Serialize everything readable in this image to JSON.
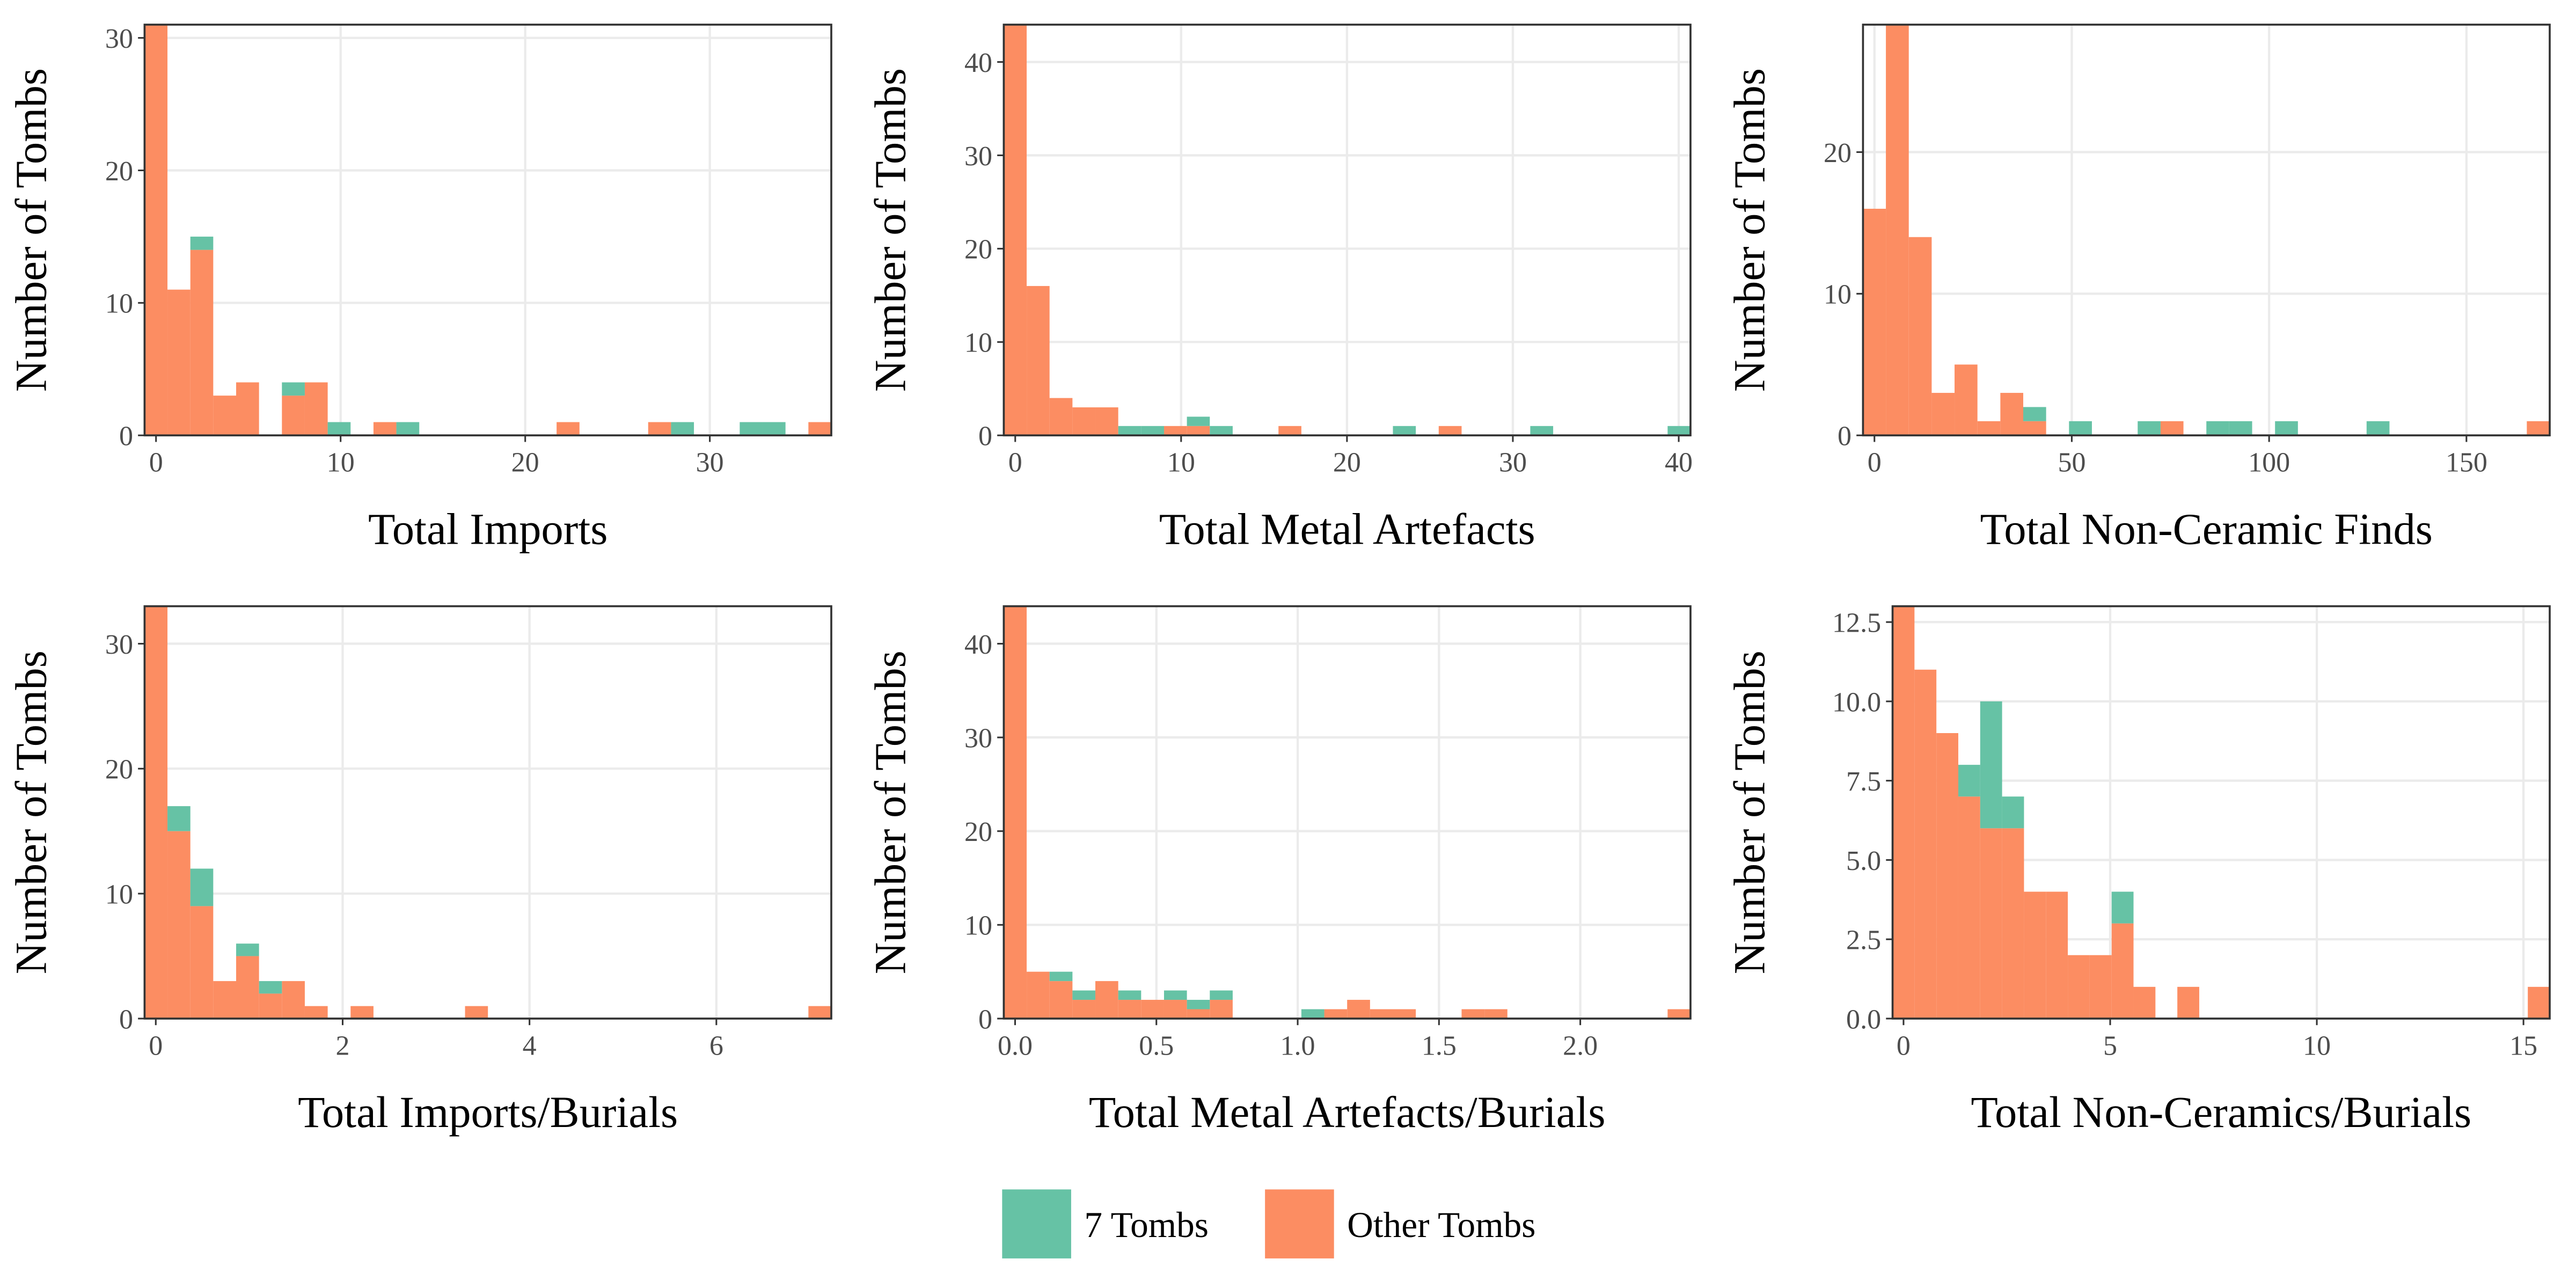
{
  "chart_data": [
    {
      "type": "histogram",
      "x_label": "Total Imports",
      "y_label": "Number of Tombs",
      "bins": [
        -0.62,
        0.62,
        1.86,
        3.1,
        4.34,
        5.58,
        6.82,
        8.06,
        9.3,
        10.54,
        11.78,
        13.02,
        14.26,
        15.5,
        16.74,
        17.98,
        19.22,
        20.46,
        21.7,
        22.94,
        24.18,
        25.42,
        26.66,
        27.9,
        29.14,
        30.38,
        31.62,
        32.86,
        34.1,
        35.34,
        36.58
      ],
      "series": [
        {
          "values": [
            0,
            0,
            1,
            0,
            0,
            0,
            1,
            0,
            1,
            0,
            0,
            1,
            0,
            0,
            0,
            0,
            0,
            0,
            0,
            0,
            0,
            0,
            0,
            1,
            0,
            0,
            1,
            1,
            0,
            0
          ]
        },
        {
          "values": [
            31,
            11,
            14,
            3,
            4,
            0,
            3,
            4,
            0,
            0,
            1,
            0,
            0,
            0,
            0,
            0,
            0,
            0,
            1,
            0,
            0,
            0,
            1,
            0,
            0,
            0,
            0,
            0,
            0,
            1
          ]
        }
      ],
      "xlim": [
        -0.62,
        36.58
      ],
      "ylim": [
        0,
        31
      ],
      "xticks": [
        0,
        10,
        20,
        30
      ],
      "yticks": [
        0,
        10,
        20,
        30
      ]
    },
    {
      "type": "histogram",
      "x_label": "Total Metal Artefacts",
      "y_label": "Number of Tombs",
      "bins": [
        -0.69,
        0.69,
        2.07,
        3.45,
        4.83,
        6.21,
        7.59,
        8.97,
        10.35,
        11.73,
        13.11,
        14.49,
        15.87,
        17.25,
        18.63,
        20.01,
        21.39,
        22.77,
        24.15,
        25.53,
        26.91,
        28.29,
        29.67,
        31.05,
        32.43,
        33.81,
        35.19,
        36.57,
        37.95,
        39.33,
        40.71
      ],
      "series": [
        {
          "values": [
            0,
            0,
            0,
            0,
            0,
            1,
            1,
            0,
            1,
            1,
            0,
            0,
            0,
            0,
            0,
            0,
            0,
            1,
            0,
            0,
            0,
            0,
            0,
            1,
            0,
            0,
            0,
            0,
            0,
            1
          ]
        },
        {
          "values": [
            44,
            16,
            4,
            3,
            3,
            0,
            0,
            1,
            1,
            0,
            0,
            0,
            1,
            0,
            0,
            0,
            0,
            0,
            0,
            1,
            0,
            0,
            0,
            0,
            0,
            0,
            0,
            0,
            0,
            0
          ]
        }
      ],
      "xlim": [
        -0.69,
        40.71
      ],
      "ylim": [
        0,
        44
      ],
      "xticks": [
        0,
        10,
        20,
        30,
        40
      ],
      "yticks": [
        0,
        10,
        20,
        30,
        40
      ]
    },
    {
      "type": "histogram",
      "x_label": "Total Non-Ceramic Finds",
      "y_label": "Number of Tombs",
      "bins": [
        -2.9,
        2.9,
        8.7,
        14.5,
        20.3,
        26.1,
        31.9,
        37.7,
        43.5,
        49.3,
        55.1,
        60.9,
        66.7,
        72.5,
        78.3,
        84.1,
        89.9,
        95.7,
        101.5,
        107.3,
        113.1,
        118.9,
        124.7,
        130.5,
        136.3,
        142.1,
        147.9,
        153.7,
        159.5,
        165.3,
        171.1
      ],
      "series": [
        {
          "values": [
            0,
            0,
            0,
            0,
            0,
            0,
            0,
            1,
            0,
            1,
            0,
            0,
            1,
            0,
            0,
            1,
            1,
            0,
            1,
            0,
            0,
            0,
            1,
            0,
            0,
            0,
            0,
            0,
            0,
            0
          ]
        },
        {
          "values": [
            16,
            29,
            14,
            3,
            5,
            1,
            3,
            1,
            0,
            0,
            0,
            0,
            0,
            1,
            0,
            0,
            0,
            0,
            0,
            0,
            0,
            0,
            0,
            0,
            0,
            0,
            0,
            0,
            0,
            1
          ]
        }
      ],
      "xlim": [
        -2.9,
        171.1
      ],
      "ylim": [
        0,
        29
      ],
      "xticks": [
        0,
        50,
        100,
        150
      ],
      "yticks": [
        0,
        10,
        20
      ]
    },
    {
      "type": "histogram",
      "x_label": "Total Imports/Burials",
      "y_label": "Number of Tombs",
      "bins": [
        -0.12,
        0.125,
        0.37,
        0.615,
        0.86,
        1.105,
        1.35,
        1.595,
        1.84,
        2.085,
        2.33,
        2.575,
        2.82,
        3.065,
        3.31,
        3.555,
        3.8,
        4.045,
        4.29,
        4.535,
        4.78,
        5.025,
        5.27,
        5.515,
        5.76,
        6.005,
        6.25,
        6.495,
        6.74,
        6.985,
        7.23
      ],
      "series": [
        {
          "values": [
            0,
            2,
            3,
            0,
            1,
            1,
            0,
            0,
            0,
            0,
            0,
            0,
            0,
            0,
            0,
            0,
            0,
            0,
            0,
            0,
            0,
            0,
            0,
            0,
            0,
            0,
            0,
            0,
            0,
            0
          ]
        },
        {
          "values": [
            33,
            15,
            9,
            3,
            5,
            2,
            3,
            1,
            0,
            1,
            0,
            0,
            0,
            0,
            1,
            0,
            0,
            0,
            0,
            0,
            0,
            0,
            0,
            0,
            0,
            0,
            0,
            0,
            0,
            1
          ]
        }
      ],
      "xlim": [
        -0.12,
        7.23
      ],
      "ylim": [
        0,
        33
      ],
      "xticks": [
        0,
        2,
        4,
        6
      ],
      "yticks": [
        0,
        10,
        20,
        30
      ]
    },
    {
      "type": "histogram",
      "x_label": "Total Metal Artefacts/Burials",
      "y_label": "Number of Tombs",
      "bins": [
        -0.04,
        0.041,
        0.122,
        0.203,
        0.284,
        0.365,
        0.446,
        0.527,
        0.608,
        0.689,
        0.77,
        0.851,
        0.932,
        1.013,
        1.094,
        1.175,
        1.256,
        1.337,
        1.418,
        1.499,
        1.58,
        1.661,
        1.742,
        1.823,
        1.904,
        1.985,
        2.066,
        2.147,
        2.228,
        2.309,
        2.39
      ],
      "series": [
        {
          "values": [
            0,
            0,
            1,
            1,
            0,
            1,
            0,
            1,
            1,
            1,
            0,
            0,
            0,
            1,
            0,
            0,
            0,
            0,
            0,
            0,
            0,
            0,
            0,
            0,
            0,
            0,
            0,
            0,
            0,
            0
          ]
        },
        {
          "values": [
            44,
            5,
            4,
            2,
            4,
            2,
            2,
            2,
            1,
            2,
            0,
            0,
            0,
            0,
            1,
            2,
            1,
            1,
            0,
            0,
            1,
            1,
            0,
            0,
            0,
            0,
            0,
            0,
            0,
            1
          ]
        }
      ],
      "xlim": [
        -0.04,
        2.39
      ],
      "ylim": [
        0,
        44
      ],
      "xticks": [
        {
          "value": 0,
          "label": "0.0"
        },
        0.5,
        {
          "value": 1,
          "label": "1.0"
        },
        1.5,
        {
          "value": 2,
          "label": "2.0"
        }
      ],
      "yticks": [
        0,
        10,
        20,
        30,
        40
      ]
    },
    {
      "type": "histogram",
      "x_label": "Total Non-Ceramics/Burials",
      "y_label": "Number of Tombs",
      "bins": [
        -0.265,
        0.265,
        0.795,
        1.325,
        1.855,
        2.385,
        2.915,
        3.445,
        3.975,
        4.505,
        5.035,
        5.565,
        6.095,
        6.625,
        7.155,
        7.685,
        8.215,
        8.745,
        9.275,
        9.805,
        10.335,
        10.865,
        11.395,
        11.925,
        12.455,
        12.985,
        13.515,
        14.045,
        14.575,
        15.105,
        15.635
      ],
      "series": [
        {
          "values": [
            0,
            0,
            0,
            1,
            4,
            1,
            0,
            0,
            0,
            0,
            1,
            0,
            0,
            0,
            0,
            0,
            0,
            0,
            0,
            0,
            0,
            0,
            0,
            0,
            0,
            0,
            0,
            0,
            0,
            0
          ]
        },
        {
          "values": [
            13,
            11,
            9,
            7,
            6,
            6,
            4,
            4,
            2,
            2,
            3,
            1,
            0,
            1,
            0,
            0,
            0,
            0,
            0,
            0,
            0,
            0,
            0,
            0,
            0,
            0,
            0,
            0,
            0,
            1
          ]
        }
      ],
      "xlim": [
        -0.265,
        15.635
      ],
      "ylim": [
        0,
        13
      ],
      "xticks": [
        0,
        5,
        10,
        15
      ],
      "yticks": [
        {
          "value": 0,
          "label": "0.0"
        },
        2.5,
        {
          "value": 5,
          "label": "5.0"
        },
        7.5,
        {
          "value": 10,
          "label": "10.0"
        },
        12.5
      ]
    }
  ],
  "legend": {
    "entries": [
      {
        "name": "7 Tombs",
        "color": "#66c2a5"
      },
      {
        "name": "Other Tombs",
        "color": "#fc8d62"
      }
    ]
  }
}
